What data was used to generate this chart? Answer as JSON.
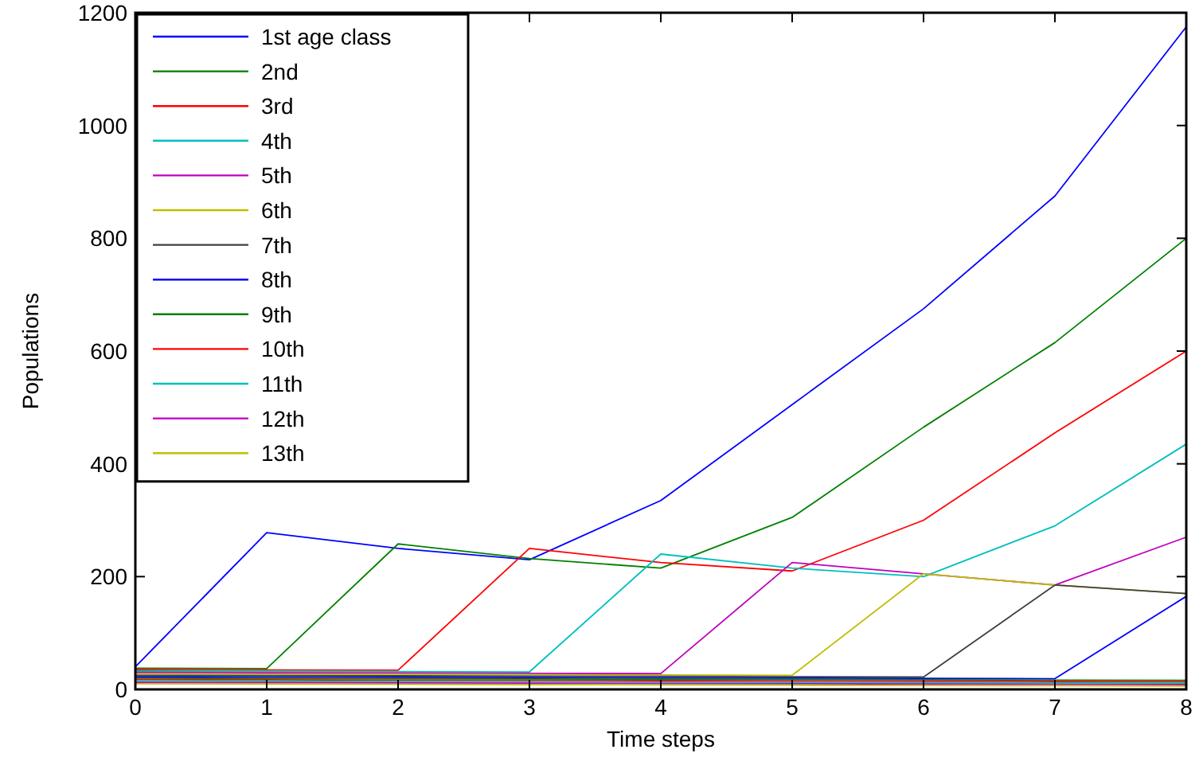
{
  "chart_data": {
    "type": "line",
    "xlabel": "Time steps",
    "ylabel": "Populations",
    "x": [
      0,
      1,
      2,
      3,
      4,
      5,
      6,
      7,
      8
    ],
    "xlim": [
      0,
      8
    ],
    "xticks": [
      0,
      1,
      2,
      3,
      4,
      5,
      6,
      7,
      8
    ],
    "ylim": [
      0,
      1200
    ],
    "yticks": [
      0,
      200,
      400,
      600,
      800,
      1000,
      1200
    ],
    "grid": false,
    "legend": "top left",
    "marker": "none",
    "line_style": "solid",
    "series": [
      {
        "name": "1st age class",
        "color": "#0000ff",
        "values": [
          40,
          278,
          250,
          230,
          335,
          505,
          675,
          875,
          1175
        ]
      },
      {
        "name": "2nd",
        "color": "#008000",
        "values": [
          37.5,
          37,
          258,
          232,
          215,
          305,
          465,
          615,
          800
        ]
      },
      {
        "name": "3rd",
        "color": "#ff0000",
        "values": [
          35,
          34.5,
          34,
          250,
          225,
          210,
          300,
          455,
          600
        ]
      },
      {
        "name": "4th",
        "color": "#00bfbf",
        "values": [
          32.5,
          32,
          31.5,
          31,
          240,
          215,
          200,
          290,
          435
        ]
      },
      {
        "name": "5th",
        "color": "#bf00bf",
        "values": [
          30,
          29.5,
          29,
          28.5,
          28,
          225,
          205,
          185,
          270
        ]
      },
      {
        "name": "6th",
        "color": "#bfbf00",
        "values": [
          27.5,
          27,
          26.5,
          26,
          25.5,
          25,
          205,
          185,
          170
        ]
      },
      {
        "name": "7th",
        "color": "#404040",
        "values": [
          25,
          24.5,
          24,
          23.5,
          23,
          22.5,
          22,
          185,
          170
        ]
      },
      {
        "name": "8th",
        "color": "#0000ff",
        "values": [
          22.5,
          22,
          21.5,
          21,
          20.5,
          20,
          19.5,
          19,
          165
        ]
      },
      {
        "name": "9th",
        "color": "#008000",
        "values": [
          20,
          19.5,
          19,
          18.5,
          18,
          17.5,
          17,
          16.5,
          16
        ]
      },
      {
        "name": "10th",
        "color": "#ff0000",
        "values": [
          17.5,
          17,
          16.5,
          16,
          15.5,
          15,
          14.5,
          14,
          13.5
        ]
      },
      {
        "name": "11th",
        "color": "#00bfbf",
        "values": [
          15,
          14.5,
          14,
          13.5,
          13,
          12.5,
          12,
          11.5,
          11
        ]
      },
      {
        "name": "12th",
        "color": "#bf00bf",
        "values": [
          12.5,
          12,
          11.5,
          11,
          10.5,
          10,
          9.5,
          9,
          8.5
        ]
      },
      {
        "name": "13th",
        "color": "#bfbf00",
        "values": [
          10,
          9.5,
          9,
          8.5,
          8,
          7.5,
          7,
          6.5,
          6
        ]
      }
    ]
  }
}
